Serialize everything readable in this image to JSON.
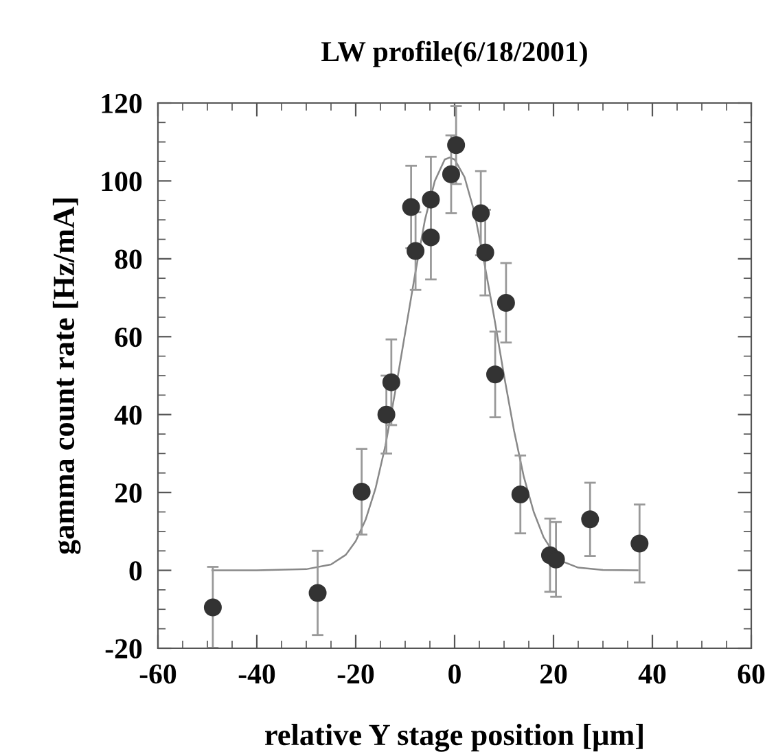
{
  "chart_data": {
    "type": "scatter",
    "title": "LW profile(6/18/2001)",
    "xlabel": "relative Y stage position [μm]",
    "ylabel": "gamma count rate [Hz/mA]",
    "xlim": [
      -60,
      60
    ],
    "xticks": [
      -60,
      -40,
      -20,
      0,
      20,
      40,
      60
    ],
    "ylim": [
      -20,
      120
    ],
    "yticks": [
      -20,
      0,
      20,
      40,
      60,
      80,
      100,
      120
    ],
    "grid": false,
    "legend": false,
    "series": [
      {
        "color": "#333333",
        "marker": "circle",
        "x": [
          -48.9,
          -27.7,
          -18.8,
          -13.8,
          -12.8,
          -8.8,
          -7.9,
          -4.8,
          -4.8,
          -0.7,
          0.3,
          5.3,
          6.2,
          8.2,
          10.4,
          13.3,
          19.3,
          20.5,
          27.4,
          37.4
        ],
        "values": [
          -9.5,
          -5.8,
          20.2,
          40,
          48.3,
          93.3,
          82,
          95.2,
          85.5,
          101.7,
          109.2,
          91.7,
          81.6,
          50.3,
          68.7,
          19.5,
          3.9,
          2.8,
          13.1,
          6.9
        ],
        "errors": [
          10.4,
          10.8,
          11,
          10,
          11,
          10.6,
          10,
          11,
          10.8,
          10,
          10,
          10.8,
          11,
          11,
          10.2,
          10,
          9.4,
          9.6,
          9.4,
          10
        ]
      },
      {
        "type": "line",
        "color": "#888888",
        "marker": "none",
        "line_style": "solid",
        "x": [
          -49,
          -40,
          -30,
          -25,
          -22,
          -20,
          -18,
          -16,
          -14,
          -12,
          -10,
          -8,
          -6,
          -4,
          -2,
          -1,
          0,
          2,
          4,
          6,
          8,
          10,
          12,
          14,
          16,
          18,
          20,
          22,
          25,
          30,
          37
        ],
        "values": [
          0,
          0,
          0.3,
          1.5,
          4,
          7.5,
          13,
          21,
          32,
          46,
          61,
          76,
          90,
          100,
          105.5,
          106,
          105.5,
          101,
          92,
          79,
          65,
          50,
          36,
          24,
          15,
          8.5,
          4.5,
          2.2,
          0.7,
          0.1,
          0
        ]
      }
    ]
  }
}
